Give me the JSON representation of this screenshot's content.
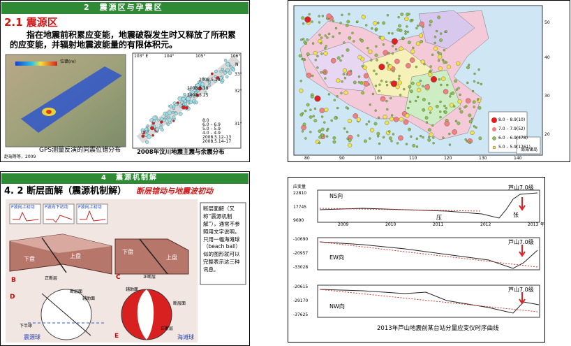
{
  "slides": [
    {
      "header": "2　震源区与孕震区",
      "title": "2.1 震源区",
      "body": "指在地震前积累应变能，地震破裂发生时又释放了所积累的应变能，并辐射地震波能量的有限体积元。",
      "left_figure": {
        "caption": "GPS测量反演的同震位错分布",
        "credit": "赵瑞等等，2009",
        "scale_label": "位错(m)"
      },
      "right_figure": {
        "caption": "2008年汶川地震主震与余震分布",
        "lon_labels": [
          "103° E",
          "104°",
          "105°",
          "106°"
        ],
        "lat_labels": [
          "33°",
          "32°",
          "31°"
        ],
        "north": "N",
        "legend": [
          "8.0",
          "6.0 – 6.9",
          "5.0 – 5.9",
          "4.0 – 4.9",
          "2008.5.12–13",
          "2008.5.14–17"
        ],
        "dates": [
          "2008.5.13",
          "2008.5.18",
          "2008.5.25"
        ]
      }
    },
    {
      "map": {
        "lon_labels": [
          "80",
          "90",
          "100",
          "110",
          "120",
          "130",
          "140"
        ],
        "lat_labels": [
          "50",
          "40",
          "30",
          "20"
        ],
        "legend": [
          "8.0 – 8.9(10)",
          "7.0 – 7.9(52)",
          "6.0 – 6.9(478)",
          "5.0 – 5.9(1761)"
        ],
        "inset": "南海诸岛"
      }
    },
    {
      "header": "4　震源机制解",
      "title": "4. 2 断层面解（震源机制解）",
      "subtitle": "断层错动与地震波初动",
      "wave_labels": [
        "P波向上初动",
        "P波向下初动",
        "P波向上初动"
      ],
      "block_labels": [
        "下盘",
        "上盘",
        "正断层",
        "下盘",
        "上盘",
        "正断层"
      ],
      "panel_letters": [
        "B",
        "C",
        "D",
        "E"
      ],
      "sphere_labels": [
        "断层面",
        "辅助面",
        "下半球",
        "震源球",
        "辅助面",
        "断层面",
        "正断层",
        "海滩球"
      ],
      "note": "断层面解（又称“震源机制解”），通常不参照用文字说明，只用一幅海滩球（beach ball）似的图形就可以完整表示这三种讯息。"
    },
    {
      "y_title": "应变量",
      "x_unit": "年",
      "years": [
        "2009",
        "2010",
        "2011",
        "2012",
        "2013"
      ],
      "panels": [
        {
          "name": "NS向",
          "yticks": [
            "22810",
            "17745",
            "9690"
          ],
          "event": "芦山7.0级",
          "notes": [
            "压",
            "张"
          ]
        },
        {
          "name": "EW向",
          "yticks": [
            "-10690",
            "-20957",
            "-33028"
          ],
          "event": "芦山7.0级"
        },
        {
          "name": "NW向",
          "yticks": [
            "-20615",
            "-29170",
            "-37625"
          ],
          "event": "芦山7.0级"
        }
      ],
      "caption": "2013年芦山地震前某台站分量应变仪时序曲线"
    }
  ]
}
